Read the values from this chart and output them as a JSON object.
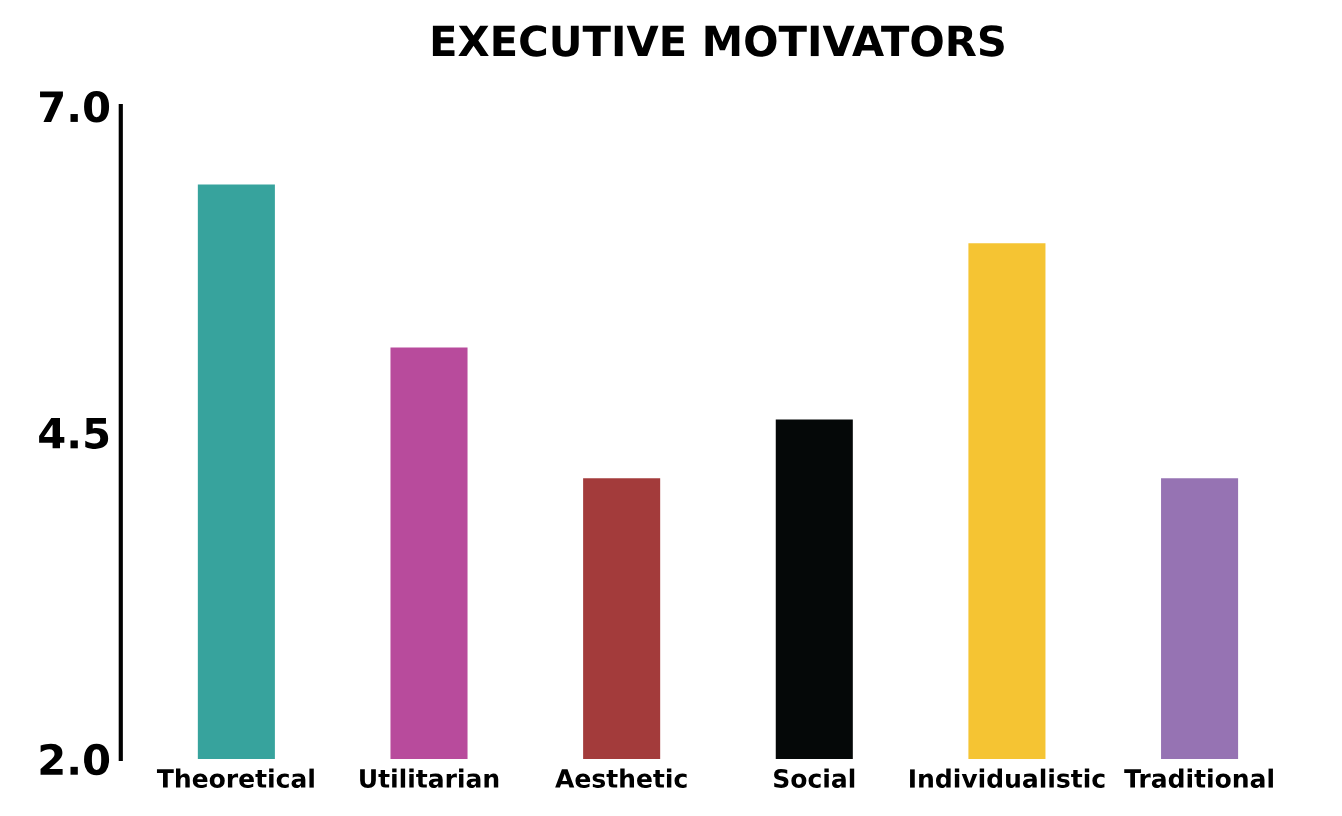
{
  "chart_data": {
    "type": "bar",
    "title": "EXECUTIVE MOTIVATORS",
    "categories": [
      "Theoretical",
      "Utilitarian",
      "Aesthetic",
      "Social",
      "Individualistic",
      "Traditional"
    ],
    "values": [
      6.4,
      5.15,
      4.15,
      4.6,
      5.95,
      4.15
    ],
    "colors": [
      "#37a39d",
      "#b84b9c",
      "#a33b3b",
      "#050808",
      "#f5c433",
      "#9673b3"
    ],
    "ylim": [
      2.0,
      7.0
    ],
    "yticks": [
      {
        "value": 2.0,
        "label": "2.0"
      },
      {
        "value": 4.5,
        "label": "4.5"
      },
      {
        "value": 7.0,
        "label": "7.0"
      }
    ],
    "grid": false
  }
}
